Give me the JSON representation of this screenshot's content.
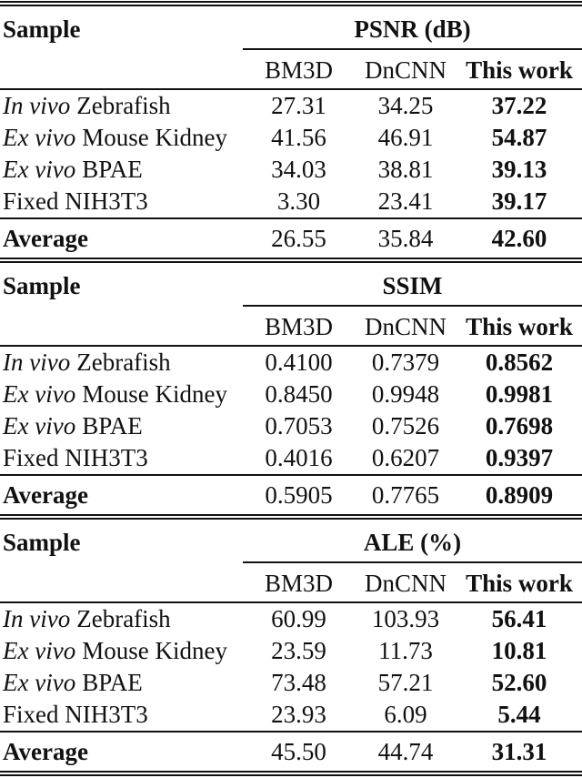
{
  "table": {
    "sample_header": "Sample",
    "average_label": "Average",
    "methods": [
      "BM3D",
      "DnCNN",
      "This work"
    ],
    "ink_color": "#111111",
    "background_color": "#ffffff",
    "sections": [
      {
        "metric": "PSNR (dB)",
        "rows": [
          {
            "italic": "In vivo",
            "rest": "Zebrafish",
            "values": [
              "27.31",
              "34.25",
              "37.22"
            ]
          },
          {
            "italic": "Ex vivo",
            "rest": "Mouse Kidney",
            "values": [
              "41.56",
              "46.91",
              "54.87"
            ]
          },
          {
            "italic": "Ex vivo",
            "rest": "BPAE",
            "values": [
              "34.03",
              "38.81",
              "39.13"
            ]
          },
          {
            "italic": "",
            "rest": "Fixed NIH3T3",
            "values": [
              "3.30",
              "23.41",
              "39.17"
            ]
          }
        ],
        "average_values": [
          "26.55",
          "35.84",
          "42.60"
        ]
      },
      {
        "metric": "SSIM",
        "rows": [
          {
            "italic": "In vivo",
            "rest": "Zebrafish",
            "values": [
              "0.4100",
              "0.7379",
              "0.8562"
            ]
          },
          {
            "italic": "Ex vivo",
            "rest": "Mouse Kidney",
            "values": [
              "0.8450",
              "0.9948",
              "0.9981"
            ]
          },
          {
            "italic": "Ex vivo",
            "rest": "BPAE",
            "values": [
              "0.7053",
              "0.7526",
              "0.7698"
            ]
          },
          {
            "italic": "",
            "rest": "Fixed NIH3T3",
            "values": [
              "0.4016",
              "0.6207",
              "0.9397"
            ]
          }
        ],
        "average_values": [
          "0.5905",
          "0.7765",
          "0.8909"
        ]
      },
      {
        "metric": "ALE (%)",
        "rows": [
          {
            "italic": "In vivo",
            "rest": "Zebrafish",
            "values": [
              "60.99",
              "103.93",
              "56.41"
            ]
          },
          {
            "italic": "Ex vivo",
            "rest": "Mouse Kidney",
            "values": [
              "23.59",
              "11.73",
              "10.81"
            ]
          },
          {
            "italic": "Ex vivo",
            "rest": "BPAE",
            "values": [
              "73.48",
              "57.21",
              "52.60"
            ]
          },
          {
            "italic": "",
            "rest": "Fixed NIH3T3",
            "values": [
              "23.93",
              "6.09",
              "5.44"
            ]
          }
        ],
        "average_values": [
          "45.50",
          "44.74",
          "31.31"
        ]
      }
    ]
  }
}
